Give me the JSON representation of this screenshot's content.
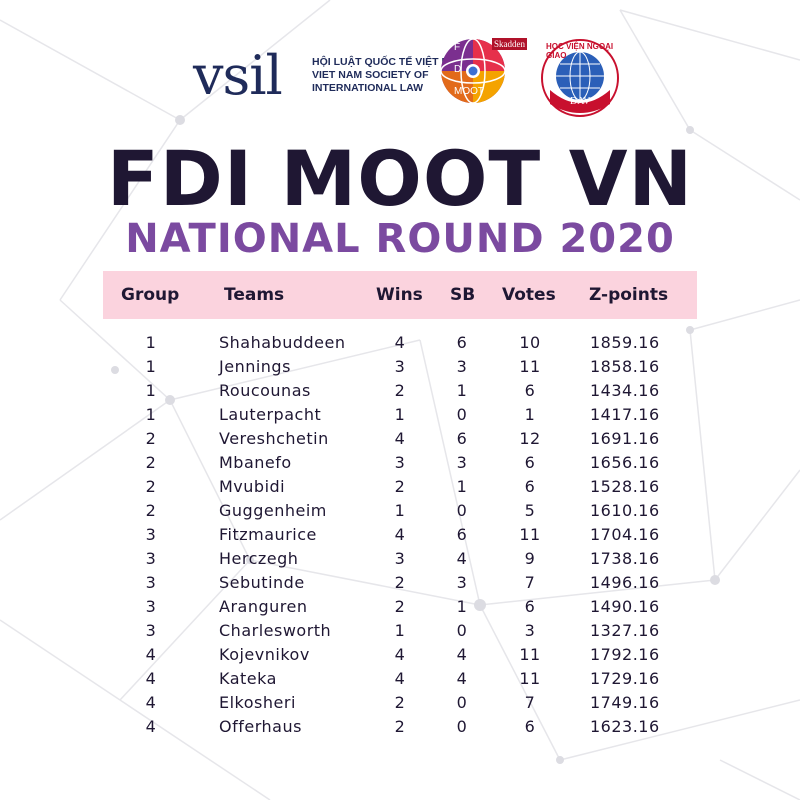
{
  "logos": {
    "vsil_mark": "vsil",
    "vsil_line1": "HỘI LUẬT QUỐC TẾ VIỆT NAM",
    "vsil_line2": "VIET NAM SOCIETY OF",
    "vsil_line3": "INTERNATIONAL LAW",
    "moot_sponsor": "Skadden",
    "moot_l1": "F",
    "moot_l2": "D",
    "moot_l3": "MOOT",
    "dav_ring": "HỌC VIỆN NGOẠI GIAO",
    "dav_abbr": "DAV"
  },
  "title": "FDI MOOT VN",
  "subtitle": "NATIONAL ROUND 2020",
  "colors": {
    "title": "#1f1733",
    "subtitle": "#7b4aa0",
    "header_band": "#fbd3de"
  },
  "table": {
    "headers": [
      "Group",
      "Teams",
      "Wins",
      "SB",
      "Votes",
      "Z-points"
    ],
    "rows": [
      [
        "1",
        "Shahabuddeen",
        "4",
        "6",
        "10",
        "1859.16"
      ],
      [
        "1",
        "Jennings",
        "3",
        "3",
        "11",
        "1858.16"
      ],
      [
        "1",
        "Roucounas",
        "2",
        "1",
        "6",
        "1434.16"
      ],
      [
        "1",
        "Lauterpacht",
        "1",
        "0",
        "1",
        "1417.16"
      ],
      [
        "2",
        "Vereshchetin",
        "4",
        "6",
        "12",
        "1691.16"
      ],
      [
        "2",
        "Mbanefo",
        "3",
        "3",
        "6",
        "1656.16"
      ],
      [
        "2",
        "Mvubidi",
        "2",
        "1",
        "6",
        "1528.16"
      ],
      [
        "2",
        "Guggenheim",
        "1",
        "0",
        "5",
        "1610.16"
      ],
      [
        "3",
        "Fitzmaurice",
        "4",
        "6",
        "11",
        "1704.16"
      ],
      [
        "3",
        "Herczegh",
        "3",
        "4",
        "9",
        "1738.16"
      ],
      [
        "3",
        "Sebutinde",
        "2",
        "3",
        "7",
        "1496.16"
      ],
      [
        "3",
        "Aranguren",
        "2",
        "1",
        "6",
        "1490.16"
      ],
      [
        "3",
        "Charlesworth",
        "1",
        "0",
        "3",
        "1327.16"
      ],
      [
        "4",
        "Kojevnikov",
        "4",
        "4",
        "11",
        "1792.16"
      ],
      [
        "4",
        "Kateka",
        "4",
        "4",
        "11",
        "1729.16"
      ],
      [
        "4",
        "Elkosheri",
        "2",
        "0",
        "7",
        "1749.16"
      ],
      [
        "4",
        "Offerhaus",
        "2",
        "0",
        "6",
        "1623.16"
      ]
    ]
  }
}
